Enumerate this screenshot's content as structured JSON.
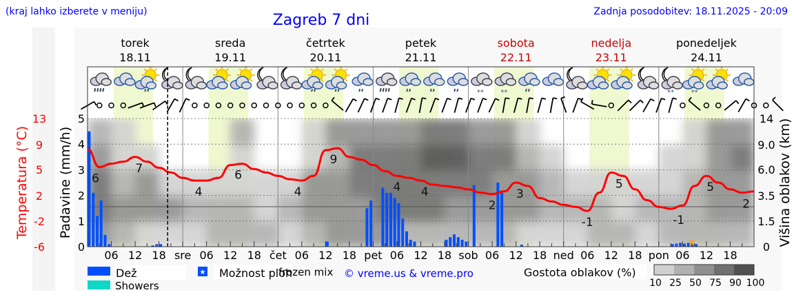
{
  "header": {
    "hint": "(kraj lahko izberete v meniju)",
    "title": "Zagreb 7 dni",
    "updated": "Zadnja posodobitev: 18.11.2025 - 20:09"
  },
  "days": [
    {
      "name": "torek",
      "date": "18.11",
      "weekend": false
    },
    {
      "name": "sreda",
      "date": "19.11",
      "weekend": false
    },
    {
      "name": "četrtek",
      "date": "20.11",
      "weekend": false
    },
    {
      "name": "petek",
      "date": "21.11",
      "weekend": false
    },
    {
      "name": "sobota",
      "date": "22.11",
      "weekend": true
    },
    {
      "name": "nedelja",
      "date": "23.11",
      "weekend": true
    },
    {
      "name": "ponedeljek",
      "date": "24.11",
      "weekend": false
    }
  ],
  "colors": {
    "title": "#0000ff",
    "temperature": "#ff0000",
    "rain": "#0050ff",
    "showers": "#10d8c8",
    "weekend": "#cc0000",
    "daylight": "#f0f8d0",
    "frozen_mix": "#ff9900"
  },
  "chart_data": {
    "type": "meteogram",
    "x_unit": "hours from 18.11 00:00",
    "now_hour": 20.2,
    "x_tick_labels": [
      "06",
      "12",
      "18",
      "sre",
      "06",
      "12",
      "18",
      "čet",
      "06",
      "12",
      "18",
      "pet",
      "06",
      "12",
      "18",
      "sob",
      "06",
      "12",
      "18",
      "ned",
      "06",
      "12",
      "18",
      "pon",
      "06",
      "12",
      "18"
    ],
    "daylight_hours": [
      6.5,
      16.5
    ],
    "temperature": {
      "axis_label": "Temperatura (°C)",
      "tick_labels": [
        "13",
        "9",
        "5",
        "2",
        "-2",
        "-6"
      ],
      "ylim": [
        -6,
        13
      ],
      "step_hours": 3,
      "values": [
        8.5,
        5.8,
        6.3,
        6.6,
        7.3,
        6.6,
        5.7,
        5.0,
        4.2,
        3.8,
        3.8,
        4.2,
        6.1,
        6.3,
        5.5,
        5.0,
        4.5,
        4.0,
        3.8,
        4.5,
        8.3,
        8.6,
        7.3,
        6.9,
        6.1,
        5.2,
        4.5,
        4.2,
        3.8,
        3.2,
        3.0,
        2.8,
        2.5,
        2.0,
        1.8,
        2.2,
        3.5,
        3.0,
        1.2,
        0.7,
        0.2,
        -0.1,
        -0.7,
        2.0,
        5.0,
        4.5,
        2.5,
        0.9,
        -0.1,
        -0.4,
        0.1,
        3.0,
        4.5,
        3.5,
        2.5,
        2.0,
        2.2
      ],
      "labels": [
        {
          "h": 2,
          "text": "6",
          "t": 5.8
        },
        {
          "h": 13,
          "text": "7",
          "t": 7.3
        },
        {
          "h": 28,
          "text": "4",
          "t": 3.8
        },
        {
          "h": 38,
          "text": "6",
          "t": 6.3
        },
        {
          "h": 53,
          "text": "4",
          "t": 3.8
        },
        {
          "h": 62,
          "text": "9",
          "t": 8.6
        },
        {
          "h": 78,
          "text": "4",
          "t": 4.5
        },
        {
          "h": 85,
          "text": "4",
          "t": 3.8
        },
        {
          "h": 102,
          "text": "2",
          "t": 1.8
        },
        {
          "h": 109,
          "text": "3",
          "t": 3.5
        },
        {
          "h": 126,
          "text": "-1",
          "t": -0.7
        },
        {
          "h": 134,
          "text": "5",
          "t": 5.0
        },
        {
          "h": 149,
          "text": "-1",
          "t": -0.4
        },
        {
          "h": 157,
          "text": "5",
          "t": 4.5
        },
        {
          "h": 166,
          "text": "2",
          "t": 2.0
        }
      ]
    },
    "precipitation": {
      "axis_label": "Padavine (mm/h)",
      "tick_labels": [
        "0",
        "1",
        "2",
        "3",
        "4",
        "5"
      ],
      "ylim": [
        0,
        5
      ],
      "bars": [
        {
          "h": 0,
          "v": 4.5
        },
        {
          "h": 1,
          "v": 2.1
        },
        {
          "h": 2,
          "v": 1.2
        },
        {
          "h": 3,
          "v": 1.8
        },
        {
          "h": 4,
          "v": 0.46
        },
        {
          "h": 5,
          "v": 0.1
        },
        {
          "h": 16,
          "v": 0.05
        },
        {
          "h": 17,
          "v": 0.1
        },
        {
          "h": 18,
          "v": 0.1
        },
        {
          "h": 60,
          "v": 0.2
        },
        {
          "h": 70,
          "v": 1.5
        },
        {
          "h": 71,
          "v": 1.8
        },
        {
          "h": 74,
          "v": 2.3
        },
        {
          "h": 75,
          "v": 2.1
        },
        {
          "h": 76,
          "v": 2.1
        },
        {
          "h": 77,
          "v": 1.9
        },
        {
          "h": 78,
          "v": 1.7
        },
        {
          "h": 79,
          "v": 1.1
        },
        {
          "h": 80,
          "v": 0.6
        },
        {
          "h": 81,
          "v": 0.27
        },
        {
          "h": 82,
          "v": 0.2
        },
        {
          "h": 90,
          "v": 0.27
        },
        {
          "h": 91,
          "v": 0.37
        },
        {
          "h": 92,
          "v": 0.48
        },
        {
          "h": 93,
          "v": 0.37
        },
        {
          "h": 94,
          "v": 0.27
        },
        {
          "h": 95,
          "v": 0.2
        },
        {
          "h": 97,
          "v": 2.4
        },
        {
          "h": 103,
          "v": 2.5
        },
        {
          "h": 104,
          "v": 2.1
        },
        {
          "h": 109,
          "v": 0.08
        },
        {
          "h": 147,
          "v": 0.1
        },
        {
          "h": 148,
          "v": 0.12
        },
        {
          "h": 149,
          "v": 0.15
        },
        {
          "h": 150,
          "v": 0.12
        },
        {
          "h": 151,
          "v": 0.15
        },
        {
          "h": 152,
          "v": 0.12
        },
        {
          "h": 153,
          "v": 0.1
        }
      ],
      "frozen_mix_hours": [
        152
      ]
    },
    "cloud_height": {
      "axis_label": "Višina oblakov (km)",
      "tick_labels": [
        "0",
        "1.5",
        "3.5",
        "6.0",
        "9.0",
        "14"
      ],
      "band_step_hours": 6,
      "density_percent_by_band": [
        [
          60,
          80,
          75,
          60,
          30
        ],
        [
          30,
          50,
          40,
          20,
          10
        ],
        [
          20,
          50,
          50,
          10,
          0
        ],
        [
          10,
          60,
          20,
          0,
          0
        ],
        [
          20,
          40,
          10,
          0,
          0
        ],
        [
          40,
          30,
          10,
          0,
          0
        ],
        [
          40,
          30,
          20,
          10,
          30
        ],
        [
          30,
          20,
          10,
          0,
          0
        ],
        [
          20,
          40,
          20,
          0,
          0
        ],
        [
          40,
          60,
          50,
          20,
          10
        ],
        [
          50,
          70,
          60,
          40,
          50
        ],
        [
          60,
          70,
          80,
          80,
          70
        ],
        [
          50,
          75,
          80,
          80,
          60
        ],
        [
          40,
          75,
          80,
          85,
          70
        ],
        [
          40,
          75,
          85,
          90,
          80
        ],
        [
          30,
          70,
          85,
          90,
          80
        ],
        [
          40,
          70,
          75,
          80,
          70
        ],
        [
          30,
          60,
          70,
          75,
          50
        ],
        [
          20,
          60,
          50,
          40,
          20
        ],
        [
          20,
          40,
          30,
          10,
          0
        ],
        [
          20,
          40,
          20,
          0,
          0
        ],
        [
          40,
          30,
          20,
          0,
          0
        ],
        [
          30,
          20,
          10,
          0,
          0
        ],
        [
          20,
          30,
          20,
          0,
          0
        ],
        [
          30,
          40,
          20,
          10,
          0
        ],
        [
          30,
          40,
          30,
          20,
          10
        ],
        [
          40,
          60,
          70,
          70,
          50
        ],
        [
          40,
          60,
          70,
          80,
          70
        ]
      ]
    },
    "weather_icons_step_hours": 6,
    "weather_icons": [
      "cloud-heavy-rain",
      "cloud",
      "sun-cloud-drizzle",
      "moon-cloud",
      "moon-cloud",
      "sun-cloud",
      "sun-cloud",
      "moon-cloud",
      "moon-cloud",
      "sun-cloud-drizzle",
      "sun-cloud-drizzle",
      "cloud-drizzle",
      "cloud-heavy-rain",
      "cloud-drizzle",
      "cloud-drizzle",
      "cloud-drizzle",
      "cloud-snow",
      "cloud-snow",
      "cloud-drizzle",
      "cloud",
      "moon-cloud",
      "sun-cloud",
      "sun-cloud",
      "moon-cloud",
      "moon-cloud-snow",
      "sun-cloud-snow",
      "sun-cloud",
      "cloud"
    ],
    "wind_step_hours": 3,
    "wind": [
      60,
      "calm",
      "calm",
      "calm",
      70,
      70,
      55,
      30,
      25,
      "calm",
      "calm",
      "calm",
      "calm",
      "calm",
      "calm",
      "calm",
      "calm",
      "calm",
      "calm",
      "calm",
      "calm",
      -50,
      30,
      25,
      20,
      20,
      15,
      20,
      10,
      20,
      20,
      15,
      20,
      20,
      25,
      10,
      15,
      10,
      15,
      10,
      -20,
      20,
      -60,
      -80,
      "calm",
      45,
      45,
      30,
      20,
      15,
      "calm",
      -50,
      "calm",
      "calm",
      50,
      30,
      "calm",
      "calm",
      -45
    ]
  },
  "legend": {
    "rain": "Dež",
    "showers": "Showers",
    "possible_showers": "Možnost ploh",
    "frozen_mix": "frozen mix",
    "copyright": "© vreme.us & vreme.pro",
    "cloud_density_title": "Gostota oblakov (%)",
    "cloud_density_levels": [
      "10",
      "25",
      "50",
      "75",
      "90",
      "100"
    ]
  }
}
